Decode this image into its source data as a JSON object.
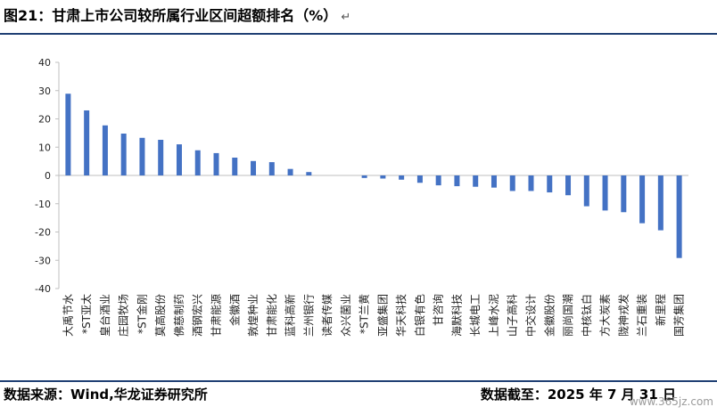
{
  "title": "图21：甘肃上市公司较所属行业区间超额排名（%）",
  "return_mark": "↵",
  "source": "数据来源：Wind,华龙证券研究所",
  "date_note": "数据截至：2025 年 7 月 31 日",
  "watermark": "www.365jz.com",
  "colors": {
    "bar": "#4472C4",
    "rule": "#1f3f73"
  },
  "chart_data": {
    "type": "bar",
    "title": "",
    "xlabel": "",
    "ylabel": "",
    "ylim": [
      -40,
      40
    ],
    "yticks": [
      40,
      30,
      20,
      10,
      0,
      -10,
      -20,
      -30,
      -40
    ],
    "grid": false,
    "legend": "none",
    "categories": [
      "大禹节水",
      "*ST亚太",
      "皇台酒业",
      "庄园牧场",
      "*ST金刚",
      "莫高股份",
      "佛慈制药",
      "酒钢宏兴",
      "甘肃能源",
      "金徽酒",
      "敦煌种业",
      "甘肃能化",
      "蓝科高新",
      "兰州银行",
      "读者传媒",
      "众兴菌业",
      "*ST兰黄",
      "亚盛集团",
      "华天科技",
      "白银有色",
      "甘咨询",
      "海默科技",
      "长城电工",
      "上峰水泥",
      "山子高科",
      "中交设计",
      "金徽股份",
      "丽尚国潮",
      "中核钛白",
      "方大炭素",
      "陇神戎发",
      "兰石重装",
      "新里程",
      "国芳集团"
    ],
    "values": [
      28.9,
      23.0,
      17.7,
      14.8,
      13.3,
      12.6,
      11.0,
      8.9,
      7.9,
      6.3,
      5.1,
      4.7,
      2.3,
      1.2,
      0.0,
      0.0,
      -0.9,
      -1.1,
      -1.5,
      -2.6,
      -3.5,
      -3.8,
      -4.0,
      -4.3,
      -5.5,
      -5.5,
      -6.0,
      -7.0,
      -10.9,
      -12.4,
      -13.0,
      -16.9,
      -19.4,
      -29.2
    ]
  }
}
